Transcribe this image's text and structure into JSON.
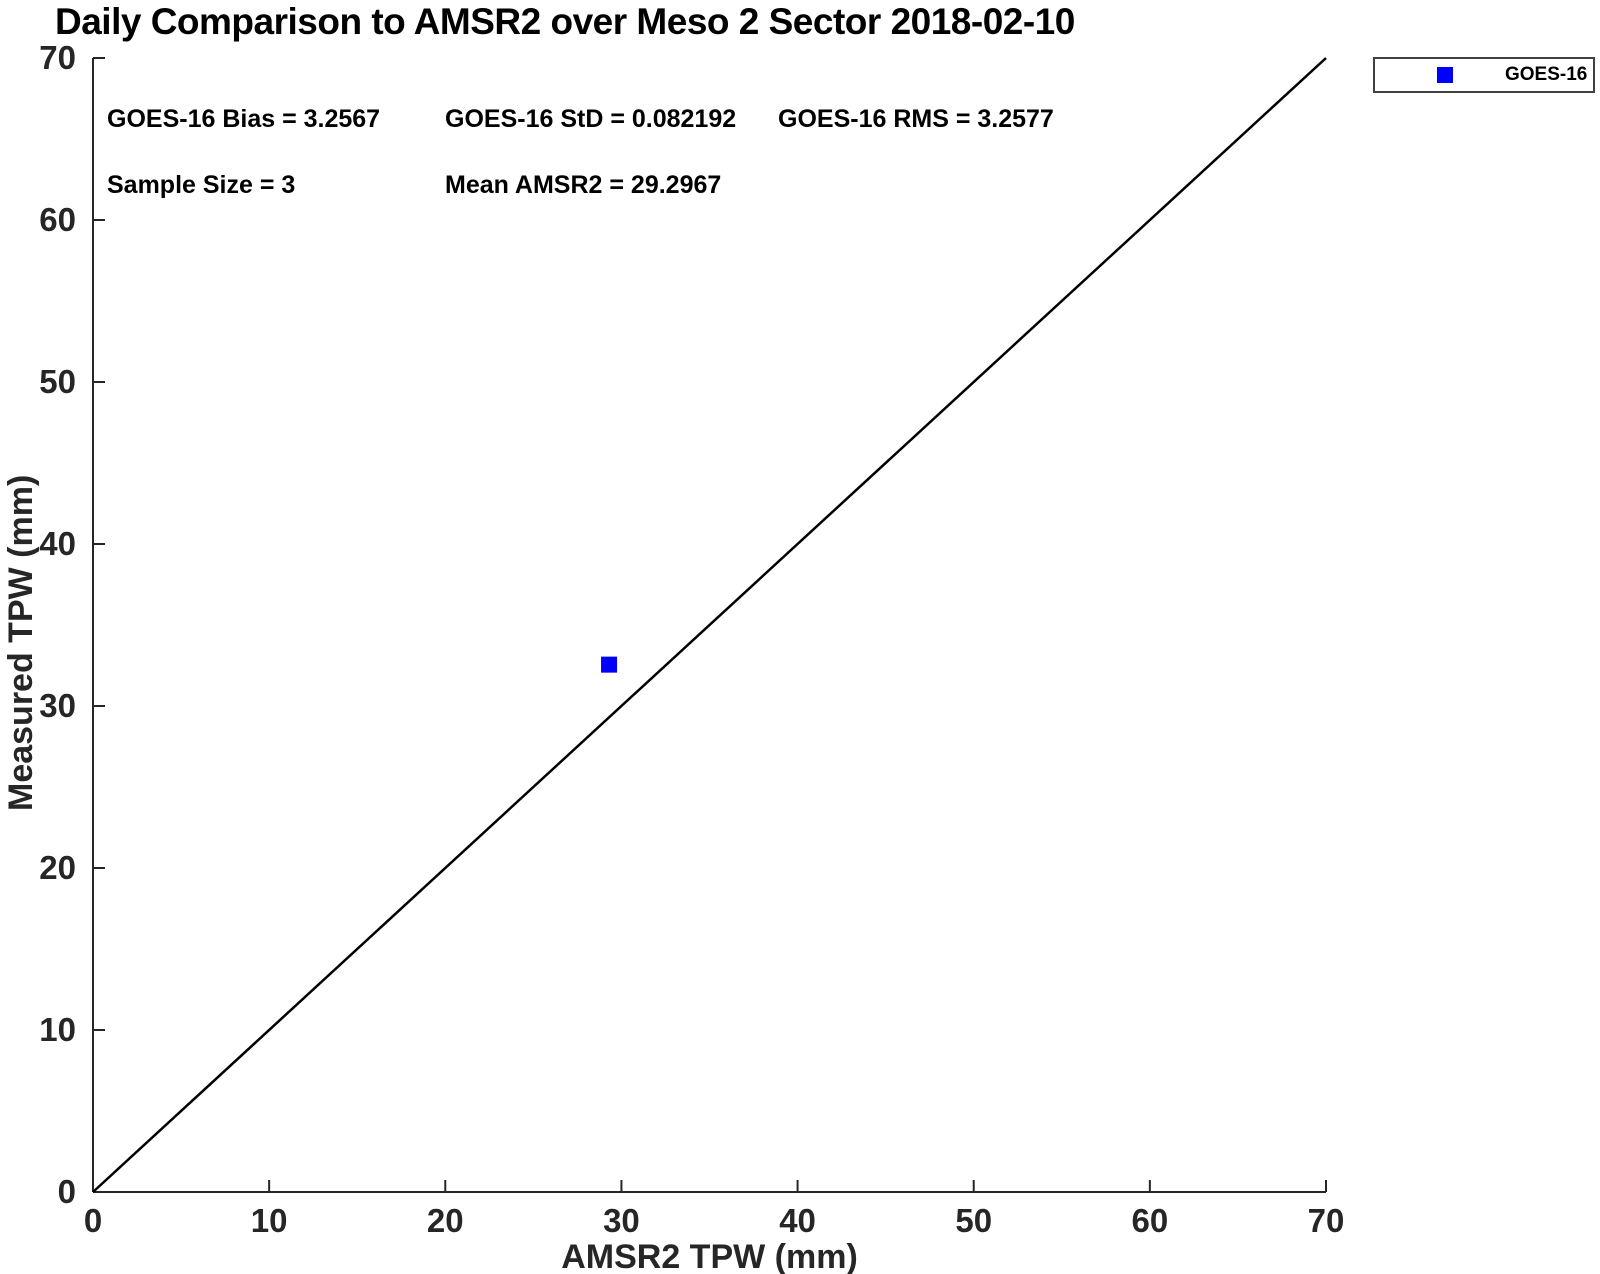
{
  "title": "Daily Comparison to AMSR2 over Meso 2 Sector 2018-02-10",
  "chart_data": {
    "type": "scatter",
    "title": "Daily Comparison to AMSR2 over Meso 2 Sector 2018-02-10",
    "xlabel": "AMSR2 TPW (mm)",
    "ylabel": "Measured TPW (mm)",
    "xlim": [
      0,
      70
    ],
    "ylim": [
      0,
      70
    ],
    "xticks": [
      0,
      10,
      20,
      30,
      40,
      50,
      60,
      70
    ],
    "yticks": [
      0,
      10,
      20,
      30,
      40,
      50,
      60,
      70
    ],
    "grid": false,
    "box": false,
    "series": [
      {
        "name": "GOES-16",
        "marker": "square",
        "color": "#0000ff",
        "points": [
          [
            29.2967,
            32.5534
          ]
        ]
      }
    ],
    "reference_line": {
      "name": "1:1 identity line",
      "from": [
        0,
        0
      ],
      "to": [
        70,
        70
      ],
      "color": "#000000"
    },
    "annotations": [
      {
        "text": "GOES-16 Bias = 3.2567"
      },
      {
        "text": "GOES-16 StD = 0.082192"
      },
      {
        "text": "GOES-16 RMS = 3.2577"
      },
      {
        "text": "Sample Size = 3"
      },
      {
        "text": "Mean AMSR2 = 29.2967"
      }
    ],
    "stats": {
      "bias": 3.2567,
      "std": 0.082192,
      "rms": 3.2577,
      "sample_size": 3,
      "mean_amsr2": 29.2967
    },
    "legend": {
      "position": "top-right-outside",
      "entries": [
        {
          "label": "GOES-16",
          "marker": "square",
          "marker_color": "#0000ff"
        }
      ]
    },
    "colors": {
      "axis": "#262626",
      "tick_text": "#262626",
      "reference_line": "#000000",
      "marker": "#0000ff",
      "text": "#000000"
    }
  }
}
